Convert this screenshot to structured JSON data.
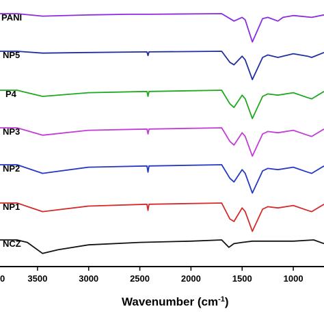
{
  "chart_data": {
    "type": "line",
    "title": "",
    "xlabel": "Wavenumber (cm",
    "xlabel_sup": "-1",
    "xlabel_close": ")",
    "ylabel": "",
    "x_reversed": true,
    "xlim": [
      4000,
      700
    ],
    "xticks": [
      3500,
      3000,
      2500,
      2000,
      1500,
      1000
    ],
    "tick_labels": [
      "3500",
      "3000",
      "2500",
      "2000",
      "1500",
      "1000"
    ],
    "edge_tick_label": "0",
    "y_ticks_shown": false,
    "grid": false,
    "series": [
      {
        "name": "PANI",
        "color": "#8a2be2"
      },
      {
        "name": "NP5",
        "color": "#1f2f9e"
      },
      {
        "name": "P4",
        "color": "#1ea81e"
      },
      {
        "name": "NP3",
        "color": "#c23bd6"
      },
      {
        "name": "NP2",
        "color": "#2339c4"
      },
      {
        "name": "NP1",
        "color": "#d42a2a"
      },
      {
        "name": "NCZ",
        "color": "#111111"
      }
    ],
    "shape_note": "shared spectral profile per series (relative transmittance dips)",
    "profiles": {
      "PANI": [
        [
          3700,
          0
        ],
        [
          3450,
          -4
        ],
        [
          3000,
          -2
        ],
        [
          2600,
          -1
        ],
        [
          2420,
          -1
        ],
        [
          1700,
          0
        ],
        [
          1620,
          -8
        ],
        [
          1580,
          -12
        ],
        [
          1500,
          -6
        ],
        [
          1470,
          -10
        ],
        [
          1400,
          -46
        ],
        [
          1300,
          -8
        ],
        [
          1250,
          -6
        ],
        [
          1150,
          -12
        ],
        [
          1100,
          -6
        ],
        [
          1000,
          -3
        ],
        [
          820,
          -6
        ],
        [
          700,
          -2
        ]
      ],
      "NP5": [
        [
          3700,
          0
        ],
        [
          3450,
          -3
        ],
        [
          3000,
          -2
        ],
        [
          2430,
          -1
        ],
        [
          2420,
          -7
        ],
        [
          2410,
          -1
        ],
        [
          1700,
          0
        ],
        [
          1620,
          -18
        ],
        [
          1580,
          -22
        ],
        [
          1500,
          -8
        ],
        [
          1470,
          -14
        ],
        [
          1400,
          -46
        ],
        [
          1300,
          -10
        ],
        [
          1250,
          -6
        ],
        [
          1150,
          -10
        ],
        [
          1000,
          -4
        ],
        [
          860,
          -8
        ],
        [
          820,
          -10
        ],
        [
          700,
          -2
        ]
      ],
      "P4": [
        [
          3700,
          0
        ],
        [
          3450,
          -10
        ],
        [
          3000,
          -4
        ],
        [
          2430,
          -2
        ],
        [
          2420,
          -10
        ],
        [
          2410,
          -2
        ],
        [
          1700,
          0
        ],
        [
          1620,
          -22
        ],
        [
          1580,
          -28
        ],
        [
          1500,
          -8
        ],
        [
          1470,
          -14
        ],
        [
          1400,
          -46
        ],
        [
          1300,
          -10
        ],
        [
          1250,
          -6
        ],
        [
          1150,
          -8
        ],
        [
          1000,
          -4
        ],
        [
          860,
          -12
        ],
        [
          820,
          -14
        ],
        [
          700,
          -2
        ]
      ],
      "NP3": [
        [
          3700,
          0
        ],
        [
          3450,
          -12
        ],
        [
          3000,
          -4
        ],
        [
          2430,
          -2
        ],
        [
          2420,
          -10
        ],
        [
          2410,
          -2
        ],
        [
          1700,
          0
        ],
        [
          1620,
          -22
        ],
        [
          1580,
          -28
        ],
        [
          1500,
          -8
        ],
        [
          1470,
          -14
        ],
        [
          1400,
          -46
        ],
        [
          1300,
          -10
        ],
        [
          1250,
          -6
        ],
        [
          1150,
          -8
        ],
        [
          1000,
          -4
        ],
        [
          860,
          -12
        ],
        [
          820,
          -14
        ],
        [
          700,
          -2
        ]
      ],
      "NP2": [
        [
          3700,
          0
        ],
        [
          3450,
          -14
        ],
        [
          3000,
          -4
        ],
        [
          2430,
          -2
        ],
        [
          2420,
          -12
        ],
        [
          2410,
          -2
        ],
        [
          1700,
          0
        ],
        [
          1620,
          -22
        ],
        [
          1580,
          -28
        ],
        [
          1500,
          -8
        ],
        [
          1470,
          -14
        ],
        [
          1400,
          -46
        ],
        [
          1300,
          -10
        ],
        [
          1250,
          -6
        ],
        [
          1150,
          -8
        ],
        [
          1000,
          -4
        ],
        [
          860,
          -12
        ],
        [
          820,
          -14
        ],
        [
          700,
          -2
        ]
      ],
      "NP1": [
        [
          3700,
          0
        ],
        [
          3450,
          -14
        ],
        [
          3000,
          -5
        ],
        [
          2430,
          -2
        ],
        [
          2420,
          -12
        ],
        [
          2410,
          -2
        ],
        [
          1700,
          0
        ],
        [
          1620,
          -26
        ],
        [
          1580,
          -30
        ],
        [
          1500,
          -8
        ],
        [
          1470,
          -14
        ],
        [
          1400,
          -46
        ],
        [
          1300,
          -10
        ],
        [
          1250,
          -6
        ],
        [
          1150,
          -8
        ],
        [
          1000,
          -4
        ],
        [
          860,
          -12
        ],
        [
          820,
          -14
        ],
        [
          700,
          -2
        ]
      ],
      "NCZ": [
        [
          3700,
          0
        ],
        [
          3600,
          -4
        ],
        [
          3450,
          -22
        ],
        [
          3300,
          -16
        ],
        [
          3000,
          -8
        ],
        [
          2500,
          -4
        ],
        [
          2000,
          -2
        ],
        [
          1700,
          0
        ],
        [
          1630,
          -12
        ],
        [
          1580,
          -6
        ],
        [
          1500,
          -4
        ],
        [
          1400,
          -2
        ],
        [
          1200,
          -2
        ],
        [
          1000,
          -2
        ],
        [
          800,
          0
        ],
        [
          700,
          -6
        ]
      ]
    }
  }
}
